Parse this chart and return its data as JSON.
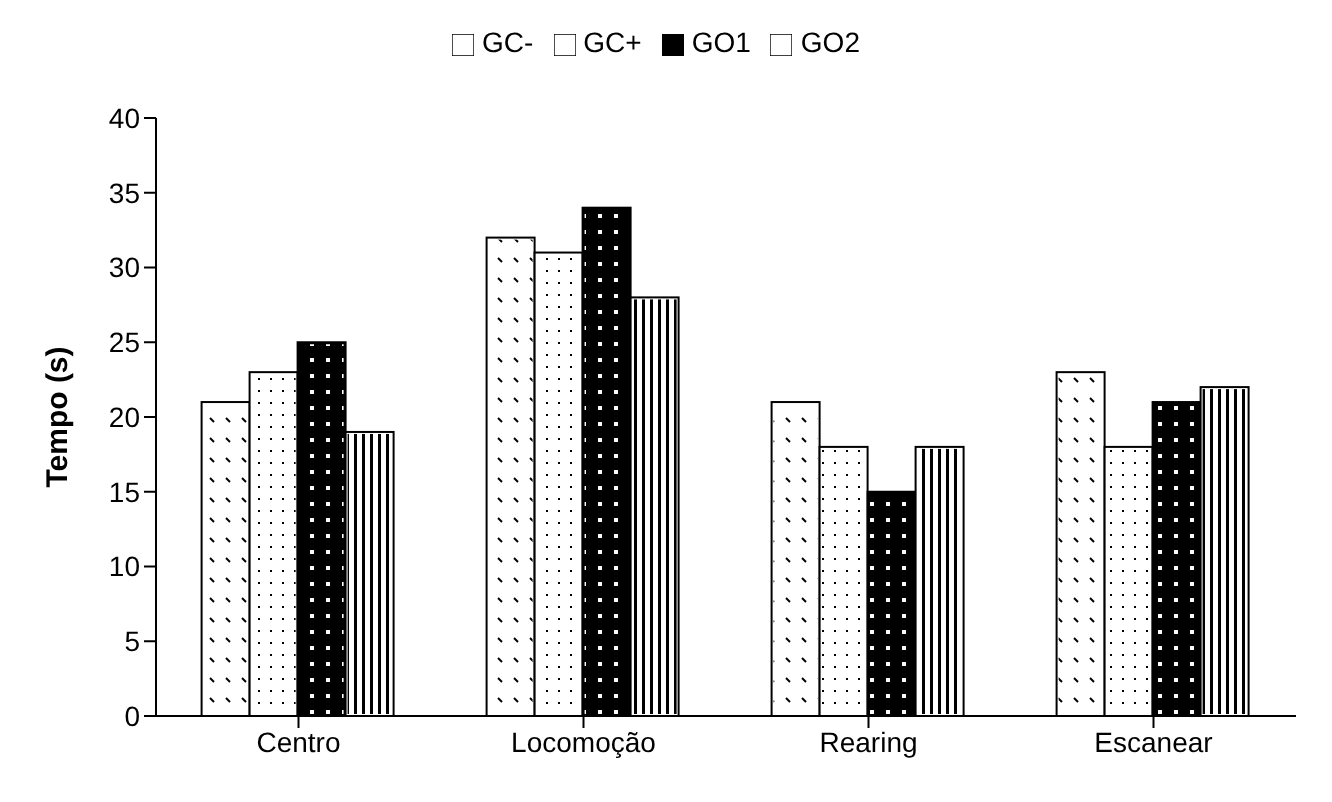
{
  "chart_data": {
    "type": "bar",
    "ylabel": "Tempo (s)",
    "categories": [
      "Centro",
      "Locomoção",
      "Rearing",
      "Escanear"
    ],
    "series": [
      {
        "name": "GC-",
        "color": "#ffffff",
        "values": [
          21,
          32,
          21,
          23
        ]
      },
      {
        "name": "GC+",
        "color": "#ffffff",
        "values": [
          23,
          31,
          18,
          18
        ]
      },
      {
        "name": "GO1",
        "color": "#000000",
        "values": [
          25,
          34,
          15,
          21
        ]
      },
      {
        "name": "GO2",
        "color": "#ffffff",
        "values": [
          19,
          28,
          18,
          22
        ]
      }
    ],
    "ylim": [
      0,
      40
    ],
    "yticks": [
      0,
      5,
      10,
      15,
      20,
      25,
      30,
      35,
      40
    ],
    "grid": false,
    "legend": "top"
  }
}
